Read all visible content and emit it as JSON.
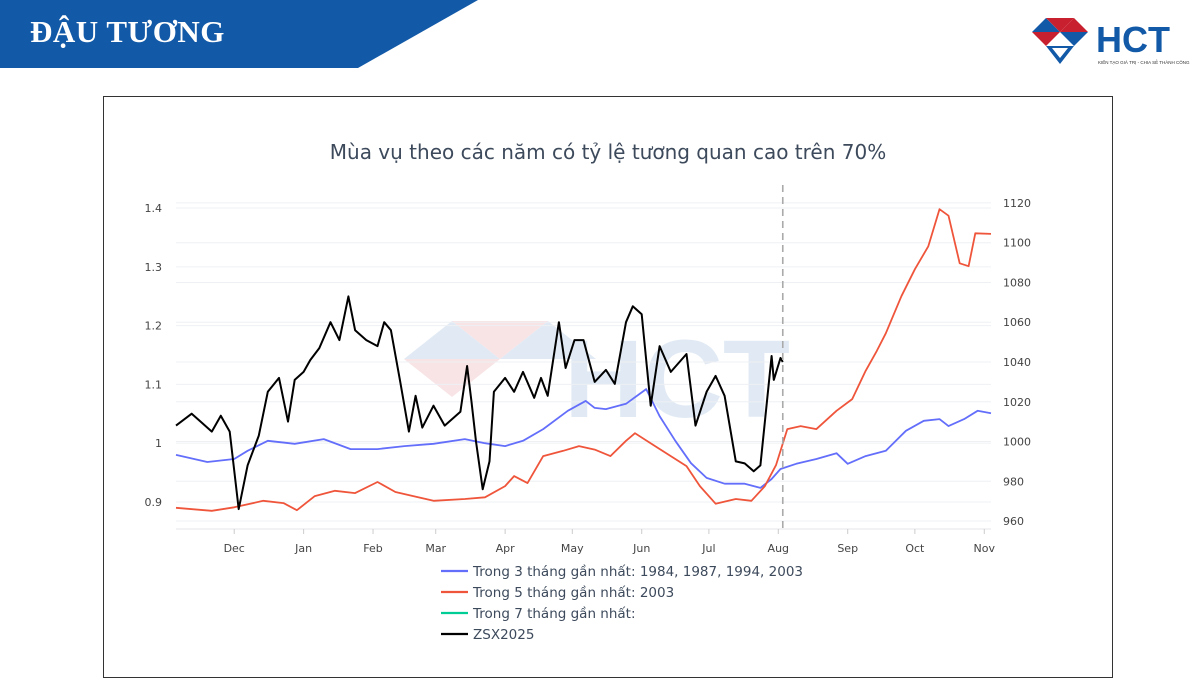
{
  "header": {
    "title": "ĐẬU TƯƠNG",
    "banner_color": "#1259a7"
  },
  "logo": {
    "text": "HCT",
    "tagline": "KIẾN TẠO GIÁ TRỊ - CHIA SẺ THÀNH CÔNG",
    "blue": "#1259a7",
    "red": "#c8202f"
  },
  "chart_data": {
    "type": "line",
    "title": "Mùa vụ theo các năm có tỷ lệ tương quan cao trên 70%",
    "x_ticks": [
      {
        "date": "12-01",
        "label": "Dec"
      },
      {
        "date": "01-01",
        "label": "Jan"
      },
      {
        "date": "02-01",
        "label": "Feb"
      },
      {
        "date": "03-01",
        "label": "Mar"
      },
      {
        "date": "04-01",
        "label": "Apr"
      },
      {
        "date": "05-01",
        "label": "May"
      },
      {
        "date": "06-01",
        "label": "Jun"
      },
      {
        "date": "07-01",
        "label": "Jul"
      },
      {
        "date": "08-01",
        "label": "Aug"
      },
      {
        "date": "09-01",
        "label": "Sep"
      },
      {
        "date": "10-01",
        "label": "Oct"
      },
      {
        "date": "11-01",
        "label": "Nov"
      }
    ],
    "xrange": [
      "11-05",
      "11-04"
    ],
    "y_left": {
      "range": [
        0.854,
        1.429
      ],
      "ticks": [
        0.9,
        1,
        1.1,
        1.2,
        1.3,
        1.4
      ],
      "tick_labels": [
        "0.9",
        "1",
        "1.1",
        "1.2",
        "1.3",
        "1.4"
      ]
    },
    "y_right": {
      "range": [
        956,
        1126
      ],
      "ticks": [
        960,
        980,
        1000,
        1020,
        1040,
        1060,
        1080,
        1100,
        1120
      ],
      "tick_labels": [
        "960",
        "980",
        "1000",
        "1020",
        "1040",
        "1060",
        "1080",
        "1100",
        "1120"
      ]
    },
    "grid": true,
    "vline": {
      "date": "08-03",
      "style": "dashed",
      "color": "#aaaaaa"
    },
    "legend_position": "bottom",
    "series": [
      {
        "name": "Trong 3 tháng gần nhất: 1984, 1987, 1994, 2003",
        "color": "#636efa",
        "axis": "left",
        "x": [
          "11-05",
          "11-19",
          "12-01",
          "12-07",
          "12-16",
          "12-28",
          "01-10",
          "01-22",
          "02-03",
          "02-15",
          "02-28",
          "03-14",
          "03-23",
          "04-01",
          "04-09",
          "04-18",
          "04-29",
          "05-07",
          "05-11",
          "05-16",
          "05-25",
          "06-03",
          "06-09",
          "06-16",
          "06-23",
          "06-30",
          "07-08",
          "07-17",
          "07-24",
          "07-29",
          "08-02",
          "08-09",
          "08-18",
          "08-27",
          "09-01",
          "09-09",
          "09-18",
          "09-27",
          "10-05",
          "10-12",
          "10-16",
          "10-23",
          "10-29",
          "11-04"
        ],
        "y": [
          0.98,
          0.968,
          0.973,
          0.987,
          1.004,
          0.999,
          1.007,
          0.99,
          0.99,
          0.995,
          0.999,
          1.007,
          1.0,
          0.995,
          1.004,
          1.024,
          1.055,
          1.072,
          1.06,
          1.058,
          1.067,
          1.092,
          1.046,
          1.004,
          0.966,
          0.941,
          0.931,
          0.931,
          0.924,
          0.939,
          0.956,
          0.965,
          0.973,
          0.983,
          0.965,
          0.978,
          0.987,
          1.021,
          1.038,
          1.041,
          1.029,
          1.041,
          1.055,
          1.051
        ]
      },
      {
        "name": "Trong 5 tháng gần nhất: 2003",
        "color": "#ef553b",
        "axis": "left",
        "x": [
          "11-05",
          "11-21",
          "12-01",
          "12-14",
          "12-23",
          "12-29",
          "01-06",
          "01-15",
          "01-24",
          "02-03",
          "02-11",
          "02-19",
          "02-28",
          "03-14",
          "03-23",
          "04-01",
          "04-05",
          "04-11",
          "04-18",
          "04-27",
          "05-04",
          "05-11",
          "05-18",
          "05-25",
          "05-29",
          "06-07",
          "06-14",
          "06-21",
          "06-27",
          "07-04",
          "07-13",
          "07-20",
          "07-26",
          "07-31",
          "08-05",
          "08-11",
          "08-18",
          "08-27",
          "09-03",
          "09-09",
          "09-14",
          "09-18",
          "09-25",
          "10-01",
          "10-07",
          "10-12",
          "10-16",
          "10-21",
          "10-25",
          "10-28",
          "11-04"
        ],
        "y": [
          0.89,
          0.885,
          0.891,
          0.902,
          0.898,
          0.886,
          0.91,
          0.919,
          0.915,
          0.934,
          0.917,
          0.91,
          0.902,
          0.905,
          0.908,
          0.927,
          0.944,
          0.932,
          0.978,
          0.987,
          0.995,
          0.989,
          0.978,
          1.004,
          1.017,
          0.995,
          0.978,
          0.961,
          0.927,
          0.897,
          0.905,
          0.902,
          0.927,
          0.963,
          1.024,
          1.029,
          1.024,
          1.055,
          1.075,
          1.123,
          1.157,
          1.187,
          1.25,
          1.296,
          1.335,
          1.398,
          1.387,
          1.306,
          1.301,
          1.357,
          1.356
        ]
      },
      {
        "name": "Trong 7 tháng gần nhất:",
        "color": "#00cc96",
        "axis": "left",
        "x": [],
        "y": []
      },
      {
        "name": "ZSX2025",
        "color": "#000000",
        "axis": "right",
        "x": [
          "11-05",
          "11-12",
          "11-16",
          "11-21",
          "11-25",
          "11-29",
          "12-03",
          "12-07",
          "12-12",
          "12-16",
          "12-21",
          "12-25",
          "12-28",
          "01-01",
          "01-04",
          "01-08",
          "01-13",
          "01-17",
          "01-21",
          "01-24",
          "01-29",
          "02-03",
          "02-06",
          "02-09",
          "02-13",
          "02-17",
          "02-20",
          "02-23",
          "02-28",
          "03-05",
          "03-12",
          "03-15",
          "03-17",
          "03-19",
          "03-22",
          "03-25",
          "03-27",
          "04-01",
          "04-05",
          "04-09",
          "04-14",
          "04-17",
          "04-20",
          "04-25",
          "04-28",
          "05-02",
          "05-06",
          "05-11",
          "05-16",
          "05-20",
          "05-25",
          "05-28",
          "06-01",
          "06-05",
          "06-09",
          "06-14",
          "06-21",
          "06-25",
          "06-30",
          "07-04",
          "07-08",
          "07-13",
          "07-17",
          "07-21",
          "07-24",
          "07-29",
          "07-30",
          "08-02",
          "08-03"
        ],
        "y": [
          1008,
          1014,
          1010,
          1005,
          1013,
          1005,
          966,
          988,
          1003,
          1025,
          1032,
          1010,
          1031,
          1035,
          1041,
          1047,
          1060,
          1051,
          1073,
          1056,
          1051,
          1048,
          1060,
          1056,
          1031,
          1005,
          1023,
          1007,
          1018,
          1008,
          1015,
          1038,
          1020,
          1000,
          976,
          990,
          1025,
          1032,
          1025,
          1035,
          1022,
          1032,
          1023,
          1060,
          1037,
          1051,
          1051,
          1030,
          1036,
          1029,
          1060,
          1068,
          1064,
          1018,
          1048,
          1035,
          1044,
          1008,
          1025,
          1033,
          1023,
          990,
          989,
          985,
          988,
          1043,
          1031,
          1042,
          1040
        ]
      }
    ]
  }
}
